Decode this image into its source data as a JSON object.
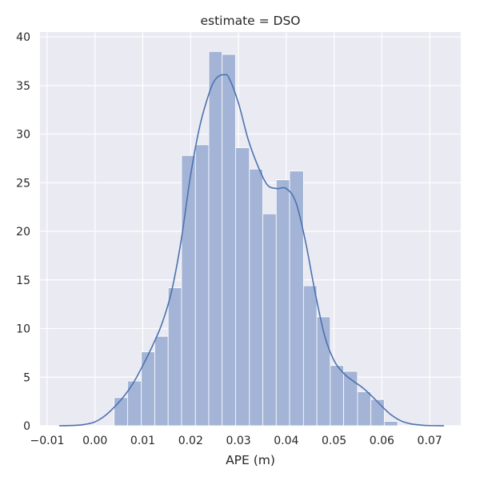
{
  "chart_data": {
    "type": "bar",
    "title": "estimate = DSO",
    "xlabel": "APE (m)",
    "ylabel": "",
    "xlim": [
      -0.0115,
      0.0765
    ],
    "ylim": [
      0,
      40.5
    ],
    "grid": true,
    "colors": {
      "background": "#eaeaf2",
      "grid": "#ffffff",
      "bar_fill": "#a4b4d6",
      "bar_edge": "#ffffff",
      "line": "#4c72b0"
    },
    "xticks": [
      {
        "value": -0.01,
        "label": "−0.01"
      },
      {
        "value": 0.0,
        "label": "0.00"
      },
      {
        "value": 0.01,
        "label": "0.01"
      },
      {
        "value": 0.02,
        "label": "0.02"
      },
      {
        "value": 0.03,
        "label": "0.03"
      },
      {
        "value": 0.04,
        "label": "0.04"
      },
      {
        "value": 0.05,
        "label": "0.05"
      },
      {
        "value": 0.06,
        "label": "0.06"
      },
      {
        "value": 0.07,
        "label": "0.07"
      }
    ],
    "yticks": [
      {
        "value": 0,
        "label": "0"
      },
      {
        "value": 5,
        "label": "5"
      },
      {
        "value": 10,
        "label": "10"
      },
      {
        "value": 15,
        "label": "15"
      },
      {
        "value": 20,
        "label": "20"
      },
      {
        "value": 25,
        "label": "25"
      },
      {
        "value": 30,
        "label": "30"
      },
      {
        "value": 35,
        "label": "35"
      },
      {
        "value": 40,
        "label": "40"
      }
    ],
    "bin_edges": [
      0.004,
      0.0068,
      0.0097,
      0.0125,
      0.0153,
      0.0181,
      0.021,
      0.0238,
      0.0266,
      0.0294,
      0.0323,
      0.0351,
      0.0379,
      0.0407,
      0.0436,
      0.0464,
      0.0492,
      0.052,
      0.0549,
      0.0577,
      0.0605,
      0.0633
    ],
    "values": [
      2.9,
      4.6,
      7.6,
      9.2,
      14.2,
      27.8,
      28.9,
      38.5,
      38.2,
      28.6,
      26.4,
      21.8,
      25.3,
      26.2,
      14.4,
      11.2,
      6.2,
      5.6,
      3.5,
      2.7,
      0.45
    ],
    "kde": {
      "x": [
        -0.0075,
        -0.004,
        -0.002,
        0.0,
        0.002,
        0.004,
        0.006,
        0.008,
        0.01,
        0.012,
        0.014,
        0.016,
        0.018,
        0.02,
        0.022,
        0.024,
        0.025,
        0.026,
        0.027,
        0.028,
        0.03,
        0.032,
        0.034,
        0.036,
        0.038,
        0.04,
        0.042,
        0.044,
        0.046,
        0.048,
        0.05,
        0.052,
        0.054,
        0.056,
        0.058,
        0.06,
        0.062,
        0.064,
        0.066,
        0.068,
        0.07,
        0.073
      ],
      "y": [
        0,
        0.05,
        0.15,
        0.4,
        1.0,
        1.9,
        3.0,
        4.4,
        6.2,
        8.2,
        10.5,
        13.8,
        19.0,
        25.8,
        31.0,
        34.4,
        35.5,
        36.0,
        36.1,
        35.8,
        33.2,
        29.5,
        26.8,
        24.8,
        24.4,
        24.4,
        23.0,
        19.0,
        13.8,
        9.3,
        6.7,
        5.4,
        4.6,
        3.9,
        3.0,
        2.0,
        1.1,
        0.5,
        0.2,
        0.08,
        0.02,
        0
      ]
    }
  }
}
